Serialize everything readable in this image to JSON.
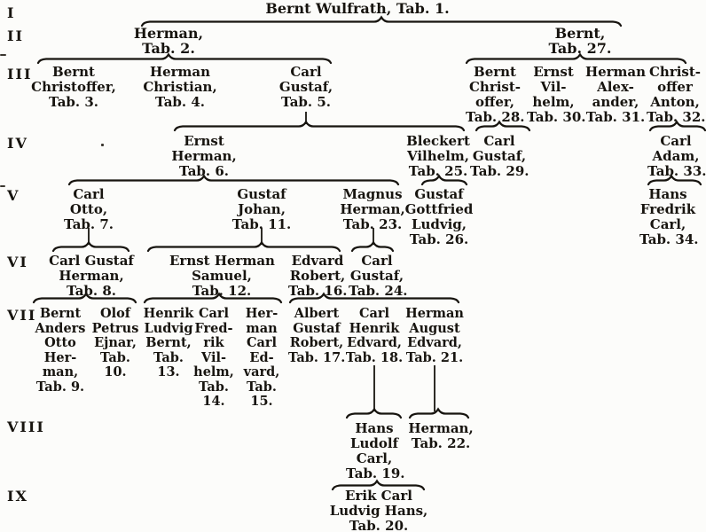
{
  "page_title": "Genealogical descent table of the Wulfrath family",
  "generations": [
    {
      "numeral": "I",
      "persons": [
        {
          "tab": "1",
          "lines": [
            "Bernt Wulfrath, Tab. 1."
          ]
        }
      ]
    },
    {
      "numeral": "II",
      "persons": [
        {
          "tab": "2",
          "lines": [
            "Herman,",
            "Tab. 2."
          ]
        },
        {
          "tab": "27",
          "lines": [
            "Bernt,",
            "Tab. 27."
          ]
        }
      ]
    },
    {
      "numeral": "III",
      "persons": [
        {
          "tab": "3",
          "lines": [
            "Bernt",
            "Christoffer,",
            "Tab. 3."
          ]
        },
        {
          "tab": "4",
          "lines": [
            "Herman",
            "Christian,",
            "Tab. 4."
          ]
        },
        {
          "tab": "5",
          "lines": [
            "Carl",
            "Gustaf,",
            "Tab. 5."
          ]
        },
        {
          "tab": "28",
          "lines": [
            "Bernt",
            "Christ-",
            "offer,",
            "Tab. 28."
          ]
        },
        {
          "tab": "30",
          "lines": [
            "Ernst",
            "Vil-",
            "helm,",
            "Tab. 30."
          ]
        },
        {
          "tab": "31",
          "lines": [
            "Herman",
            "Alex-",
            "ander,",
            "Tab. 31."
          ]
        },
        {
          "tab": "32",
          "lines": [
            "Christ-",
            "offer",
            "Anton,",
            "Tab. 32."
          ]
        }
      ]
    },
    {
      "numeral": "IV",
      "persons": [
        {
          "tab": "6",
          "lines": [
            "Ernst",
            "Herman,",
            "Tab. 6."
          ]
        },
        {
          "tab": "25",
          "lines": [
            "Bleckert",
            "Vilhelm,",
            "Tab. 25."
          ]
        },
        {
          "tab": "29",
          "lines": [
            "Carl",
            "Gustaf,",
            "Tab. 29."
          ]
        },
        {
          "tab": "33",
          "lines": [
            "Carl",
            "Adam,",
            "Tab. 33."
          ]
        }
      ]
    },
    {
      "numeral": "V",
      "persons": [
        {
          "tab": "7",
          "lines": [
            "Carl",
            "Otto,",
            "Tab. 7."
          ]
        },
        {
          "tab": "11",
          "lines": [
            "Gustaf",
            "Johan,",
            "Tab. 11."
          ]
        },
        {
          "tab": "23",
          "lines": [
            "Magnus",
            "Herman,",
            "Tab. 23."
          ]
        },
        {
          "tab": "26",
          "lines": [
            "Gustaf",
            "Gottfried",
            "Ludvig,",
            "Tab. 26."
          ]
        },
        {
          "tab": "34",
          "lines": [
            "Hans",
            "Fredrik",
            "Carl,",
            "Tab. 34."
          ]
        }
      ]
    },
    {
      "numeral": "VI",
      "persons": [
        {
          "tab": "8",
          "lines": [
            "Carl Gustaf",
            "Herman,",
            "Tab. 8."
          ]
        },
        {
          "tab": "12",
          "lines": [
            "Ernst Herman",
            "Samuel,",
            "Tab. 12."
          ]
        },
        {
          "tab": "16",
          "lines": [
            "Edvard",
            "Robert,",
            "Tab. 16."
          ]
        },
        {
          "tab": "24",
          "lines": [
            "Carl",
            "Gustaf,",
            "Tab. 24."
          ]
        }
      ]
    },
    {
      "numeral": "VII",
      "persons": [
        {
          "tab": "9",
          "lines": [
            "Bernt",
            "Anders",
            "Otto",
            "Her-",
            "man,",
            "Tab. 9."
          ]
        },
        {
          "tab": "10",
          "lines": [
            "Olof",
            "Petrus",
            "Ejnar,",
            "Tab.",
            "10."
          ]
        },
        {
          "tab": "13",
          "lines": [
            "Henrik",
            "Ludvig",
            "Bernt,",
            "Tab.",
            "13."
          ]
        },
        {
          "tab": "14",
          "lines": [
            "Carl",
            "Fred-",
            "rik",
            "Vil-",
            "helm,",
            "Tab.",
            "14."
          ]
        },
        {
          "tab": "15",
          "lines": [
            "Her-",
            "man",
            "Carl",
            "Ed-",
            "vard,",
            "Tab.",
            "15."
          ]
        },
        {
          "tab": "17",
          "lines": [
            "Albert",
            "Gustaf",
            "Robert,",
            "Tab. 17."
          ]
        },
        {
          "tab": "18",
          "lines": [
            "Carl",
            "Henrik",
            "Edvard,",
            "Tab. 18."
          ]
        },
        {
          "tab": "21",
          "lines": [
            "Herman",
            "August",
            "Edvard,",
            "Tab. 21."
          ]
        }
      ]
    },
    {
      "numeral": "VIII",
      "persons": [
        {
          "tab": "19",
          "lines": [
            "Hans",
            "Ludolf",
            "Carl,",
            "Tab. 19."
          ]
        },
        {
          "tab": "22",
          "lines": [
            "Herman,",
            "Tab. 22."
          ]
        }
      ]
    },
    {
      "numeral": "IX",
      "persons": [
        {
          "tab": "20",
          "lines": [
            "Erik Carl",
            "Ludvig Hans,",
            "Tab. 20."
          ]
        }
      ]
    }
  ],
  "connections": [
    {
      "parents": [
        "1"
      ],
      "children": [
        "2",
        "27"
      ]
    },
    {
      "parents": [
        "2"
      ],
      "children": [
        "3",
        "4",
        "5"
      ]
    },
    {
      "parents": [
        "27"
      ],
      "children": [
        "28",
        "30",
        "31",
        "32"
      ]
    },
    {
      "parents": [
        "5"
      ],
      "children": [
        "6",
        "25"
      ]
    },
    {
      "parents": [
        "28"
      ],
      "children": [
        "29"
      ]
    },
    {
      "parents": [
        "32"
      ],
      "children": [
        "33"
      ]
    },
    {
      "parents": [
        "6"
      ],
      "children": [
        "7",
        "11",
        "23"
      ]
    },
    {
      "parents": [
        "25"
      ],
      "children": [
        "26"
      ]
    },
    {
      "parents": [
        "33"
      ],
      "children": [
        "34"
      ]
    },
    {
      "parents": [
        "7"
      ],
      "children": [
        "8"
      ]
    },
    {
      "parents": [
        "11"
      ],
      "children": [
        "12",
        "16"
      ]
    },
    {
      "parents": [
        "23"
      ],
      "children": [
        "24"
      ]
    },
    {
      "parents": [
        "8"
      ],
      "children": [
        "9",
        "10"
      ]
    },
    {
      "parents": [
        "12"
      ],
      "children": [
        "13",
        "14",
        "15"
      ]
    },
    {
      "parents": [
        "16",
        "24"
      ],
      "children": [
        "17",
        "18",
        "21"
      ]
    },
    {
      "parents": [
        "18"
      ],
      "children": [
        "19"
      ]
    },
    {
      "parents": [
        "21"
      ],
      "children": [
        "22"
      ]
    },
    {
      "parents": [
        "19"
      ],
      "children": [
        "20"
      ]
    }
  ],
  "ink_color": "#17140f"
}
